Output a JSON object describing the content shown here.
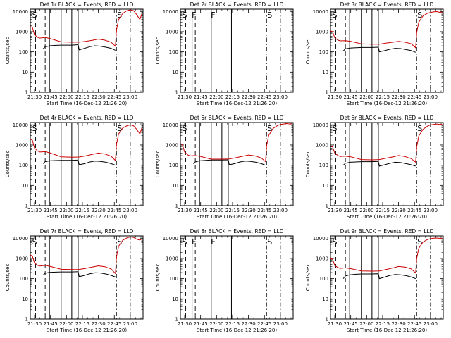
{
  "figure": {
    "y_axis_label": "Counts/sec",
    "x_axis_label": "Start Time (16-Dec-12 21:26:20)",
    "x_tick_labels": [
      "21:30",
      "21:45",
      "22:00",
      "22:15",
      "22:30",
      "22:45",
      "23:00"
    ],
    "y_tick_labels": [
      "1",
      "10",
      "100",
      "1000",
      "10000"
    ]
  },
  "colors": {
    "events": "#000000",
    "lld": "#cc0000",
    "frame": "#000000"
  },
  "chart_data": [
    {
      "type": "line",
      "title": "Det 1r BLACK = Events, RED = LLD",
      "xlabel": "Start Time (16-Dec-12 21:26:20)",
      "ylabel": "Counts/sec",
      "xlim": [
        "21:26",
        "23:12"
      ],
      "ylim": [
        1,
        13000
      ],
      "y_scale": "log",
      "vlines_solid": [
        "21:44",
        "21:55",
        "22:05",
        "22:11"
      ],
      "vlines_dashed": [
        "21:31",
        "21:40"
      ],
      "vlines_dashdot": [
        "22:47",
        "23:00"
      ],
      "flags": [
        {
          "text": "S",
          "x": "21:27"
        },
        {
          "text": "S",
          "x": "22:47"
        }
      ],
      "series": [
        {
          "color": "#cc0000",
          "x": [
            "21:26",
            "21:28",
            "21:30",
            "21:33",
            "21:35",
            "21:40",
            "21:45",
            "21:55",
            "22:05",
            "22:12",
            "22:18",
            "22:25",
            "22:30",
            "22:36",
            "22:42",
            "22:46",
            "22:47",
            "22:49",
            "22:53",
            "22:57",
            "23:00",
            "23:03",
            "23:06",
            "23:09",
            "23:11"
          ],
          "y": [
            1800,
            1600,
            700,
            520,
            480,
            520,
            450,
            310,
            300,
            300,
            330,
            380,
            430,
            380,
            300,
            190,
            1200,
            4000,
            8000,
            11000,
            12000,
            11000,
            7000,
            4000,
            8000
          ]
        },
        {
          "color": "#000000",
          "x": [
            "21:38",
            "21:40",
            "21:43",
            "21:44",
            "21:50",
            "21:55",
            "22:05",
            "22:11",
            "22:12",
            "22:17",
            "22:22",
            "22:27",
            "22:32",
            "22:37",
            "22:42",
            "22:46"
          ],
          "y": [
            140,
            180,
            190,
            200,
            210,
            215,
            215,
            225,
            125,
            150,
            180,
            200,
            190,
            170,
            150,
            120
          ]
        }
      ]
    },
    {
      "type": "line",
      "title": "Det 2r BLACK = Events, RED = LLD",
      "xlabel": "Start Time (16-Dec-12 21:26:20)",
      "ylabel": "Counts/sec",
      "xlim": [
        "21:26",
        "23:12"
      ],
      "ylim": [
        1,
        13000
      ],
      "y_scale": "log",
      "vlines_solid": [
        "21:37",
        "21:55",
        "22:14"
      ],
      "vlines_dashed": [
        "21:31",
        "21:40"
      ],
      "vlines_dashdot": [
        "22:47",
        "23:00"
      ],
      "flags": [
        {
          "text": "S",
          "x": "21:27"
        },
        {
          "text": "F",
          "x": "21:36"
        },
        {
          "text": "F",
          "x": "21:54"
        },
        {
          "text": "S",
          "x": "22:47"
        }
      ],
      "series": []
    },
    {
      "type": "line",
      "title": "Det 3r BLACK = Events, RED = LLD",
      "xlabel": "Start Time (16-Dec-12 21:26:20)",
      "ylabel": "Counts/sec",
      "xlim": [
        "21:26",
        "23:12"
      ],
      "ylim": [
        1,
        13000
      ],
      "y_scale": "log",
      "vlines_solid": [
        "21:44",
        "21:55",
        "22:05",
        "22:11"
      ],
      "vlines_dashed": [
        "21:31",
        "21:40"
      ],
      "vlines_dashdot": [
        "22:47",
        "23:00"
      ],
      "flags": [
        {
          "text": "S",
          "x": "21:27"
        },
        {
          "text": "S",
          "x": "22:47"
        }
      ],
      "series": [
        {
          "color": "#cc0000",
          "x": [
            "21:26",
            "21:28",
            "21:30",
            "21:33",
            "21:35",
            "21:40",
            "21:45",
            "21:55",
            "22:05",
            "22:12",
            "22:18",
            "22:25",
            "22:30",
            "22:36",
            "22:42",
            "22:46",
            "22:47",
            "22:49",
            "22:53",
            "22:57",
            "23:00",
            "23:03",
            "23:06",
            "23:09",
            "23:11"
          ],
          "y": [
            1100,
            1000,
            500,
            380,
            350,
            360,
            330,
            250,
            240,
            240,
            270,
            300,
            330,
            300,
            250,
            160,
            900,
            3000,
            6000,
            8000,
            9000,
            9500,
            9800,
            9000,
            9500
          ]
        },
        {
          "color": "#000000",
          "x": [
            "21:38",
            "21:40",
            "21:43",
            "21:44",
            "21:50",
            "21:55",
            "22:05",
            "22:11",
            "22:12",
            "22:17",
            "22:22",
            "22:27",
            "22:32",
            "22:37",
            "22:42",
            "22:46"
          ],
          "y": [
            110,
            140,
            150,
            155,
            160,
            165,
            165,
            170,
            100,
            115,
            135,
            150,
            145,
            130,
            115,
            95
          ]
        }
      ]
    },
    {
      "type": "line",
      "title": "Det 4r BLACK = Events, RED = LLD",
      "xlabel": "Start Time (16-Dec-12 21:26:20)",
      "ylabel": "Counts/sec",
      "xlim": [
        "21:26",
        "23:12"
      ],
      "ylim": [
        1,
        13000
      ],
      "y_scale": "log",
      "vlines_solid": [
        "21:44",
        "21:55",
        "22:05",
        "22:11"
      ],
      "vlines_dashed": [
        "21:31",
        "21:40"
      ],
      "vlines_dashdot": [
        "22:47",
        "23:00"
      ],
      "flags": [
        {
          "text": "S",
          "x": "21:27"
        },
        {
          "text": "S",
          "x": "22:47"
        }
      ],
      "series": [
        {
          "color": "#cc0000",
          "x": [
            "21:26",
            "21:28",
            "21:30",
            "21:33",
            "21:35",
            "21:40",
            "21:45",
            "21:55",
            "22:05",
            "22:12",
            "22:18",
            "22:25",
            "22:30",
            "22:36",
            "22:42",
            "22:46",
            "22:47",
            "22:49",
            "22:53",
            "22:57",
            "23:00",
            "23:03",
            "23:06",
            "23:09",
            "23:11"
          ],
          "y": [
            2000,
            1700,
            700,
            500,
            450,
            470,
            400,
            260,
            250,
            255,
            290,
            350,
            400,
            360,
            280,
            170,
            1100,
            3500,
            7000,
            9000,
            10000,
            9000,
            6000,
            3500,
            7500
          ]
        },
        {
          "color": "#000000",
          "x": [
            "21:38",
            "21:40",
            "21:43",
            "21:44",
            "21:50",
            "21:55",
            "22:05",
            "22:11",
            "22:12",
            "22:17",
            "22:22",
            "22:27",
            "22:32",
            "22:37",
            "22:42",
            "22:46"
          ],
          "y": [
            120,
            150,
            160,
            165,
            170,
            175,
            175,
            180,
            105,
            120,
            145,
            160,
            155,
            140,
            120,
            100
          ]
        }
      ]
    },
    {
      "type": "line",
      "title": "Det 5r BLACK = Events, RED = LLD",
      "xlabel": "Start Time (16-Dec-12 21:26:20)",
      "ylabel": "Counts/sec",
      "xlim": [
        "21:26",
        "23:12"
      ],
      "ylim": [
        1,
        13000
      ],
      "y_scale": "log",
      "vlines_solid": [
        "21:44",
        "21:55",
        "22:05",
        "22:11"
      ],
      "vlines_dashed": [
        "21:31",
        "21:40"
      ],
      "vlines_dashdot": [
        "22:47",
        "23:00"
      ],
      "flags": [
        {
          "text": "S",
          "x": "21:27"
        },
        {
          "text": "S",
          "x": "22:47"
        }
      ],
      "series": [
        {
          "color": "#cc0000",
          "x": [
            "21:26",
            "21:28",
            "21:30",
            "21:33",
            "21:35",
            "21:40",
            "21:45",
            "21:55",
            "22:05",
            "22:12",
            "22:18",
            "22:25",
            "22:30",
            "22:36",
            "22:42",
            "22:46",
            "22:47",
            "22:49",
            "22:53",
            "22:57",
            "23:00",
            "23:03",
            "23:06",
            "23:09",
            "23:11"
          ],
          "y": [
            1200,
            1000,
            450,
            320,
            290,
            300,
            270,
            200,
            200,
            205,
            235,
            280,
            320,
            290,
            230,
            150,
            900,
            3000,
            6500,
            9000,
            10500,
            11000,
            11500,
            11000,
            11500
          ]
        },
        {
          "color": "#000000",
          "x": [
            "21:38",
            "21:40",
            "21:43",
            "21:44",
            "21:50",
            "21:55",
            "22:05",
            "22:11",
            "22:12",
            "22:17",
            "22:22",
            "22:27",
            "22:32",
            "22:37",
            "22:42",
            "22:46"
          ],
          "y": [
            120,
            145,
            160,
            165,
            175,
            180,
            180,
            185,
            105,
            120,
            145,
            160,
            155,
            140,
            120,
            100
          ]
        }
      ]
    },
    {
      "type": "line",
      "title": "Det 6r BLACK = Events, RED = LLD",
      "xlabel": "Start Time (16-Dec-12 21:26:20)",
      "ylabel": "Counts/sec",
      "xlim": [
        "21:26",
        "23:12"
      ],
      "ylim": [
        1,
        13000
      ],
      "y_scale": "log",
      "vlines_solid": [
        "21:44",
        "21:55",
        "22:05",
        "22:11"
      ],
      "vlines_dashed": [
        "21:31",
        "21:40"
      ],
      "vlines_dashdot": [
        "22:47",
        "23:00"
      ],
      "flags": [
        {
          "text": "S",
          "x": "21:27"
        },
        {
          "text": "S",
          "x": "22:47"
        }
      ],
      "series": [
        {
          "color": "#cc0000",
          "x": [
            "21:26",
            "21:28",
            "21:30",
            "21:33",
            "21:35",
            "21:40",
            "21:45",
            "21:55",
            "22:05",
            "22:12",
            "22:18",
            "22:25",
            "22:30",
            "22:36",
            "22:42",
            "22:46",
            "22:47",
            "22:49",
            "22:53",
            "22:57",
            "23:00",
            "23:03",
            "23:06",
            "23:09",
            "23:11"
          ],
          "y": [
            900,
            800,
            400,
            300,
            270,
            280,
            260,
            190,
            185,
            190,
            220,
            260,
            300,
            270,
            210,
            140,
            800,
            2800,
            6000,
            8500,
            10000,
            10500,
            11000,
            10500,
            11000
          ]
        },
        {
          "color": "#000000",
          "x": [
            "21:38",
            "21:40",
            "21:43",
            "21:44",
            "21:50",
            "21:55",
            "22:05",
            "22:11",
            "22:12",
            "22:17",
            "22:22",
            "22:27",
            "22:32",
            "22:37",
            "22:42",
            "22:46"
          ],
          "y": [
            100,
            125,
            135,
            140,
            145,
            150,
            150,
            155,
            90,
            105,
            125,
            140,
            135,
            120,
            105,
            90
          ]
        }
      ]
    },
    {
      "type": "line",
      "title": "Det 7r BLACK = Events, RED = LLD",
      "xlabel": "Start Time (16-Dec-12 21:26:20)",
      "ylabel": "Counts/sec",
      "xlim": [
        "21:26",
        "23:12"
      ],
      "ylim": [
        1,
        13000
      ],
      "y_scale": "log",
      "vlines_solid": [
        "21:44",
        "21:55",
        "22:05",
        "22:11"
      ],
      "vlines_dashed": [
        "21:31",
        "21:40"
      ],
      "vlines_dashdot": [
        "22:47",
        "23:00"
      ],
      "flags": [
        {
          "text": "S",
          "x": "21:27"
        },
        {
          "text": "S",
          "x": "22:47"
        }
      ],
      "series": [
        {
          "color": "#cc0000",
          "x": [
            "21:26",
            "21:28",
            "21:30",
            "21:33",
            "21:35",
            "21:40",
            "21:45",
            "21:55",
            "22:05",
            "22:12",
            "22:18",
            "22:25",
            "22:30",
            "22:36",
            "22:42",
            "22:46",
            "22:47",
            "22:49",
            "22:53",
            "22:57",
            "23:00",
            "23:03",
            "23:06",
            "23:09",
            "23:11"
          ],
          "y": [
            1500,
            1300,
            600,
            450,
            420,
            450,
            400,
            290,
            280,
            285,
            320,
            380,
            430,
            390,
            300,
            180,
            1200,
            4000,
            8000,
            10500,
            11500,
            11000,
            9000,
            8000,
            9500
          ]
        },
        {
          "color": "#000000",
          "x": [
            "21:38",
            "21:40",
            "21:43",
            "21:44",
            "21:50",
            "21:55",
            "22:05",
            "22:11",
            "22:12",
            "22:17",
            "22:22",
            "22:27",
            "22:32",
            "22:37",
            "22:42",
            "22:46"
          ],
          "y": [
            150,
            185,
            200,
            205,
            210,
            215,
            215,
            220,
            125,
            145,
            175,
            195,
            190,
            170,
            145,
            120
          ]
        }
      ]
    },
    {
      "type": "line",
      "title": "Det 8r BLACK = Events, RED = LLD",
      "xlabel": "Start Time (16-Dec-12 21:26:20)",
      "ylabel": "Counts/sec",
      "xlim": [
        "21:26",
        "23:12"
      ],
      "ylim": [
        1,
        13000
      ],
      "y_scale": "log",
      "vlines_solid": [
        "21:37",
        "21:55",
        "22:14"
      ],
      "vlines_dashed": [
        "21:31",
        "21:40"
      ],
      "vlines_dashdot": [
        "22:47",
        "23:00"
      ],
      "flags": [
        {
          "text": "S",
          "x": "21:27"
        },
        {
          "text": "F",
          "x": "21:36"
        },
        {
          "text": "F",
          "x": "21:54"
        },
        {
          "text": "S",
          "x": "22:47"
        }
      ],
      "series": []
    },
    {
      "type": "line",
      "title": "Det 9r BLACK = Events, RED = LLD",
      "xlabel": "Start Time (16-Dec-12 21:26:20)",
      "ylabel": "Counts/sec",
      "xlim": [
        "21:26",
        "23:12"
      ],
      "ylim": [
        1,
        13000
      ],
      "y_scale": "log",
      "vlines_solid": [
        "21:44",
        "21:55",
        "22:05",
        "22:11"
      ],
      "vlines_dashed": [
        "21:31",
        "21:40"
      ],
      "vlines_dashdot": [
        "22:47",
        "23:00"
      ],
      "flags": [
        {
          "text": "S",
          "x": "21:27"
        },
        {
          "text": "S",
          "x": "22:47"
        }
      ],
      "series": [
        {
          "color": "#cc0000",
          "x": [
            "21:26",
            "21:28",
            "21:30",
            "21:33",
            "21:35",
            "21:40",
            "21:45",
            "21:55",
            "22:05",
            "22:12",
            "22:18",
            "22:25",
            "22:30",
            "22:36",
            "22:42",
            "22:46",
            "22:47",
            "22:49",
            "22:53",
            "22:57",
            "23:00",
            "23:03",
            "23:06",
            "23:09",
            "23:11"
          ],
          "y": [
            1000,
            900,
            450,
            350,
            320,
            340,
            310,
            240,
            235,
            240,
            280,
            340,
            400,
            370,
            300,
            190,
            1000,
            3200,
            6500,
            8500,
            9500,
            10000,
            10200,
            9800,
            10000
          ]
        },
        {
          "color": "#000000",
          "x": [
            "21:38",
            "21:40",
            "21:43",
            "21:44",
            "21:50",
            "21:55",
            "22:05",
            "22:11",
            "22:12",
            "22:17",
            "22:22",
            "22:27",
            "22:32",
            "22:37",
            "22:42",
            "22:46"
          ],
          "y": [
            100,
            135,
            150,
            155,
            165,
            170,
            170,
            175,
            100,
            120,
            145,
            160,
            155,
            140,
            120,
            100
          ]
        }
      ]
    }
  ]
}
